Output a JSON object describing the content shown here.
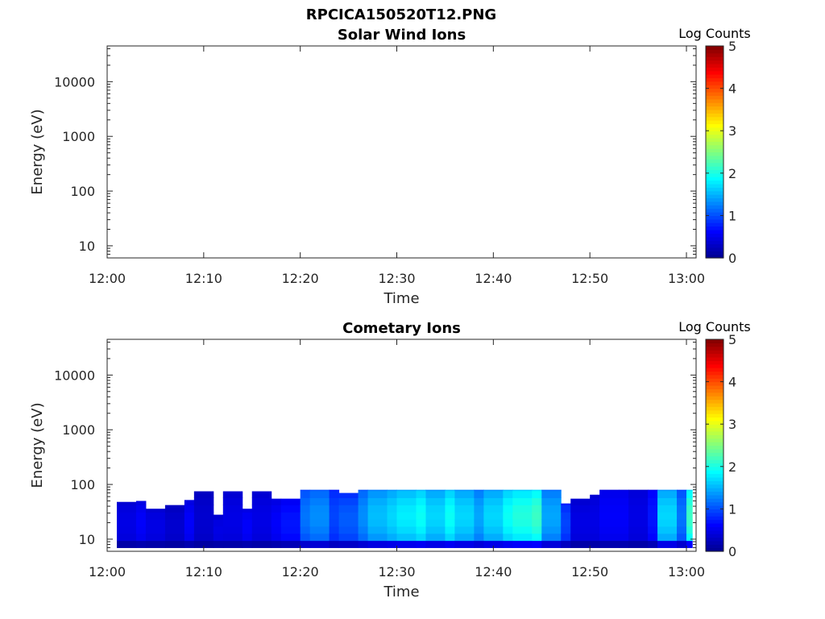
{
  "title": "RPCICA150520T12.PNG",
  "colors": {
    "jet": [
      "#00008f",
      "#0000ff",
      "#007fff",
      "#00ffff",
      "#7fff7f",
      "#ffff00",
      "#ff7f00",
      "#ff0000",
      "#7f0000"
    ],
    "axis": "#262626",
    "background": "#ffffff"
  },
  "chart_data": [
    {
      "type": "heatmap",
      "title": "Solar Wind Ions",
      "xlabel": "Time",
      "ylabel": "Energy (eV)",
      "xticks": [
        "12:00",
        "12:10",
        "12:20",
        "12:30",
        "12:40",
        "12:50",
        "13:00"
      ],
      "xlim": [
        "12:00",
        "13:01"
      ],
      "yscale": "log",
      "ylim": [
        6,
        45000
      ],
      "yticks": [
        10,
        100,
        1000,
        10000
      ],
      "ytick_labels": [
        "10",
        "100",
        "1000",
        "10000"
      ],
      "colorbar": {
        "label": "Log Counts",
        "range": [
          0,
          5
        ],
        "ticks": [
          "0",
          "1",
          "2",
          "3",
          "4",
          "5"
        ]
      },
      "columns": []
    },
    {
      "type": "heatmap",
      "title": "Cometary Ions",
      "xlabel": "Time",
      "ylabel": "Energy (eV)",
      "xticks": [
        "12:00",
        "12:10",
        "12:20",
        "12:30",
        "12:40",
        "12:50",
        "13:00"
      ],
      "xlim": [
        "12:00",
        "13:01"
      ],
      "yscale": "log",
      "ylim": [
        6,
        45000
      ],
      "yticks": [
        10,
        100,
        1000,
        10000
      ],
      "ytick_labels": [
        "10",
        "100",
        "1000",
        "10000"
      ],
      "colorbar": {
        "label": "Log Counts",
        "range": [
          0,
          5
        ],
        "ticks": [
          "0",
          "1",
          "2",
          "3",
          "4",
          "5"
        ]
      },
      "energy_range_eV": [
        7,
        80
      ],
      "columns": [
        {
          "t": "12:01",
          "top": 48,
          "v": 0.4
        },
        {
          "t": "12:03",
          "top": 50,
          "v": 0.5
        },
        {
          "t": "12:04",
          "top": 36,
          "v": 0.4
        },
        {
          "t": "12:06",
          "top": 42,
          "v": 0.3
        },
        {
          "t": "12:08",
          "top": 52,
          "v": 0.5
        },
        {
          "t": "12:09",
          "top": 75,
          "v": 0.3
        },
        {
          "t": "12:11",
          "top": 28,
          "v": 0.4
        },
        {
          "t": "12:12",
          "top": 75,
          "v": 0.4
        },
        {
          "t": "12:14",
          "top": 36,
          "v": 0.5
        },
        {
          "t": "12:15",
          "top": 75,
          "v": 0.4
        },
        {
          "t": "12:17",
          "top": 55,
          "v": 0.5
        },
        {
          "t": "12:18",
          "top": 55,
          "v": 0.6
        },
        {
          "t": "12:20",
          "top": 80,
          "v": 1.0
        },
        {
          "t": "12:21",
          "top": 80,
          "v": 1.1
        },
        {
          "t": "12:23",
          "top": 80,
          "v": 0.8
        },
        {
          "t": "12:24",
          "top": 70,
          "v": 0.9
        },
        {
          "t": "12:26",
          "top": 80,
          "v": 1.1
        },
        {
          "t": "12:27",
          "top": 80,
          "v": 1.3
        },
        {
          "t": "12:29",
          "top": 80,
          "v": 1.4
        },
        {
          "t": "12:30",
          "top": 80,
          "v": 1.5
        },
        {
          "t": "12:32",
          "top": 80,
          "v": 1.6
        },
        {
          "t": "12:33",
          "top": 80,
          "v": 1.4
        },
        {
          "t": "12:35",
          "top": 80,
          "v": 1.6
        },
        {
          "t": "12:36",
          "top": 80,
          "v": 1.4
        },
        {
          "t": "12:38",
          "top": 80,
          "v": 1.2
        },
        {
          "t": "12:39",
          "top": 80,
          "v": 1.4
        },
        {
          "t": "12:41",
          "top": 80,
          "v": 1.6
        },
        {
          "t": "12:42",
          "top": 80,
          "v": 1.7
        },
        {
          "t": "12:44",
          "top": 80,
          "v": 1.8
        },
        {
          "t": "12:45",
          "top": 80,
          "v": 1.2
        },
        {
          "t": "12:47",
          "top": 45,
          "v": 0.8
        },
        {
          "t": "12:48",
          "top": 55,
          "v": 0.4
        },
        {
          "t": "12:50",
          "top": 65,
          "v": 0.4
        },
        {
          "t": "12:51",
          "top": 80,
          "v": 0.5
        },
        {
          "t": "12:53",
          "top": 80,
          "v": 0.5
        },
        {
          "t": "12:54",
          "top": 80,
          "v": 0.4
        },
        {
          "t": "12:56",
          "top": 80,
          "v": 0.6
        },
        {
          "t": "12:57",
          "top": 80,
          "v": 1.4
        },
        {
          "t": "12:59",
          "top": 80,
          "v": 1.0
        },
        {
          "t": "13:00",
          "top": 80,
          "v": 1.8
        }
      ]
    }
  ]
}
